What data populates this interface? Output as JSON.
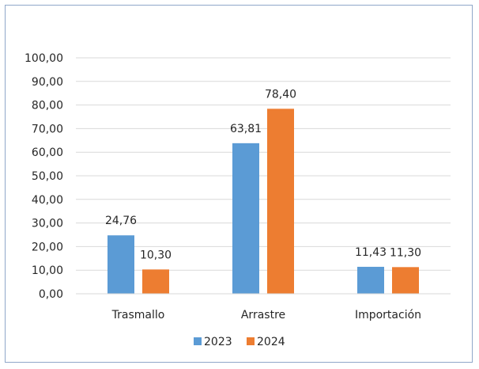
{
  "chart_data": {
    "type": "bar",
    "categories": [
      "Trasmallo",
      "Arrastre",
      "Importación"
    ],
    "series": [
      {
        "name": "2023",
        "values": [
          24.76,
          63.81,
          11.43
        ],
        "labels": [
          "24,76",
          "63,81",
          "11,43"
        ],
        "color": "#5b9bd5"
      },
      {
        "name": "2024",
        "values": [
          10.3,
          78.4,
          11.3
        ],
        "labels": [
          "10,30",
          "78,40",
          "11,30"
        ],
        "color": "#ed7d31"
      }
    ],
    "yticks": [
      "0,00",
      "10,00",
      "20,00",
      "30,00",
      "40,00",
      "50,00",
      "60,00",
      "70,00",
      "80,00",
      "90,00",
      "100,00"
    ],
    "ylim": [
      0,
      100
    ],
    "grid": true,
    "gridline_color": "#d9d9d9",
    "legend": "bottom",
    "title": "",
    "xlabel": "",
    "ylabel": ""
  }
}
